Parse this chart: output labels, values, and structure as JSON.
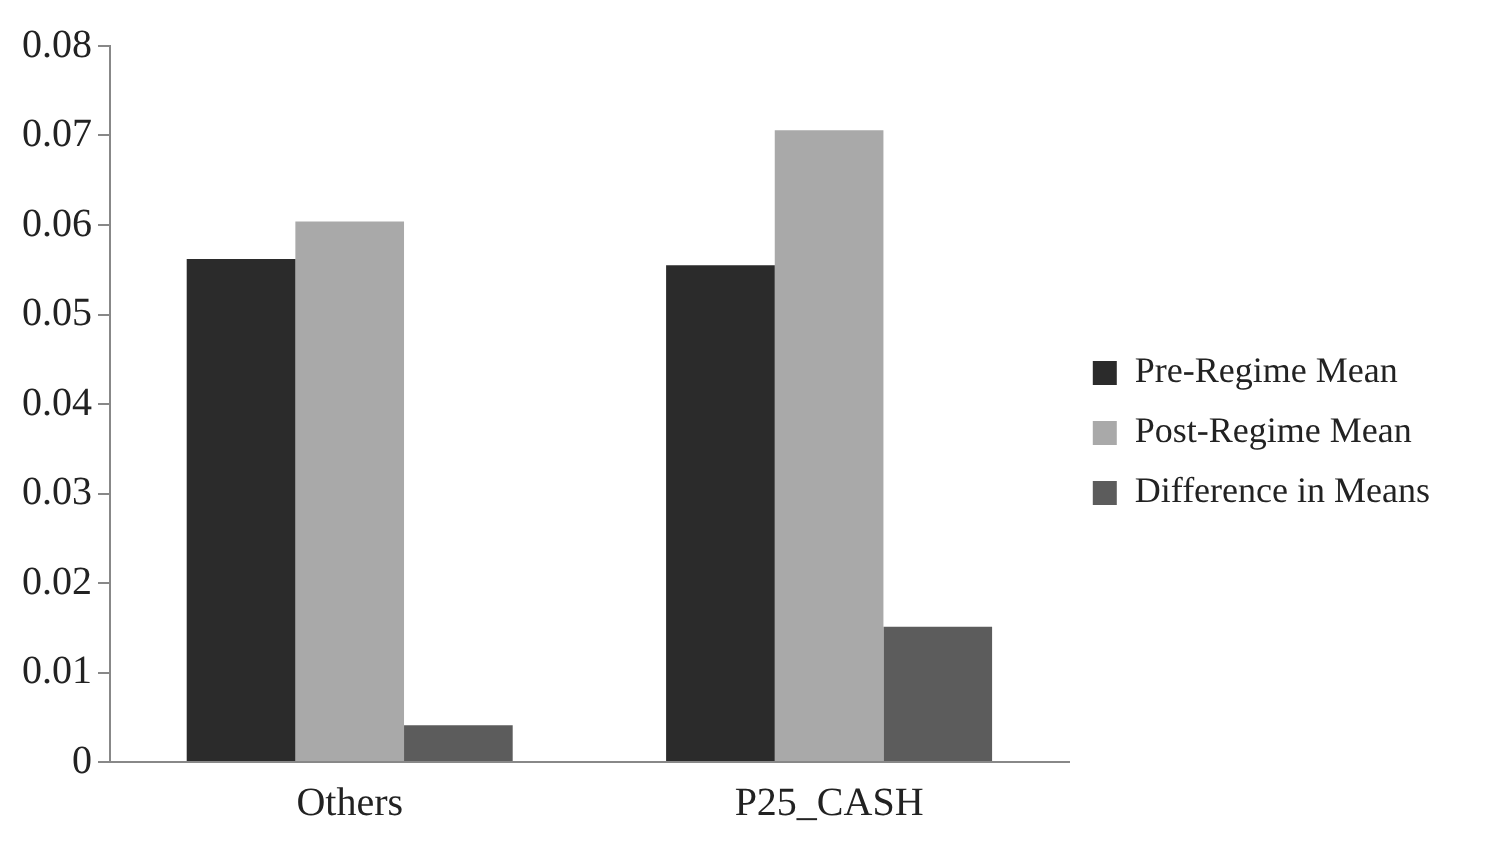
{
  "chart_data": {
    "type": "bar",
    "categories": [
      "Others",
      "P25_CASH"
    ],
    "series": [
      {
        "name": "Pre-Regime Mean",
        "color": "#2b2b2b",
        "values": [
          0.0562,
          0.0555
        ]
      },
      {
        "name": "Post-Regime Mean",
        "color": "#a9a9a9",
        "values": [
          0.0604,
          0.0706
        ]
      },
      {
        "name": "Difference in Means",
        "color": "#5c5c5c",
        "values": [
          0.0041,
          0.0151
        ]
      }
    ],
    "ylim": [
      0,
      0.08
    ],
    "yticks": [
      0,
      0.01,
      0.02,
      0.03,
      0.04,
      0.05,
      0.06,
      0.07,
      0.08
    ],
    "grid": false,
    "legend": "right"
  }
}
